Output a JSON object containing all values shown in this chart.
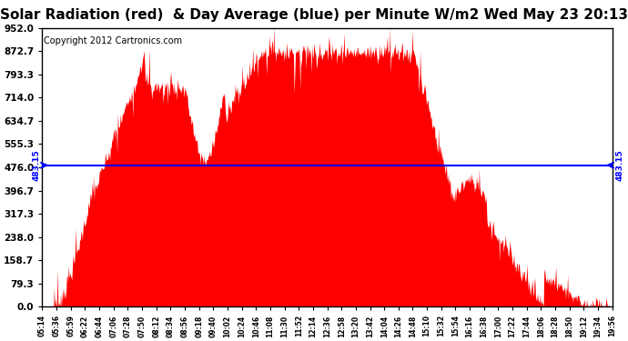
{
  "title": "Solar Radiation (red)  & Day Average (blue) per Minute W/m2 Wed May 23 20:13",
  "copyright": "Copyright 2012 Cartronics.com",
  "avg_value": 483.15,
  "y_max": 952.0,
  "y_min": 0.0,
  "y_ticks": [
    0.0,
    79.3,
    158.7,
    238.0,
    317.3,
    396.7,
    476.0,
    555.3,
    634.7,
    714.0,
    793.3,
    872.7,
    952.0
  ],
  "y_tick_labels": [
    "0.0",
    "79.3",
    "158.7",
    "238.0",
    "317.3",
    "396.7",
    "476.0",
    "555.3",
    "634.7",
    "714.0",
    "793.3",
    "872.7",
    "952.0"
  ],
  "x_tick_labels": [
    "05:14",
    "05:36",
    "05:59",
    "06:22",
    "06:44",
    "07:06",
    "07:28",
    "07:50",
    "08:12",
    "08:34",
    "08:56",
    "09:18",
    "09:40",
    "10:02",
    "10:24",
    "10:46",
    "11:08",
    "11:30",
    "11:52",
    "12:14",
    "12:36",
    "12:58",
    "13:20",
    "13:42",
    "14:04",
    "14:26",
    "14:48",
    "15:10",
    "15:32",
    "15:54",
    "16:16",
    "16:38",
    "17:00",
    "17:22",
    "17:44",
    "18:06",
    "18:28",
    "18:50",
    "19:12",
    "19:34",
    "19:56"
  ],
  "fill_color": "#FF0000",
  "line_color": "#0000FF",
  "background_color": "#FFFFFF",
  "plot_bg_color": "#FFFFFF",
  "title_fontsize": 11,
  "copyright_fontsize": 7,
  "avg_label": "483.15"
}
